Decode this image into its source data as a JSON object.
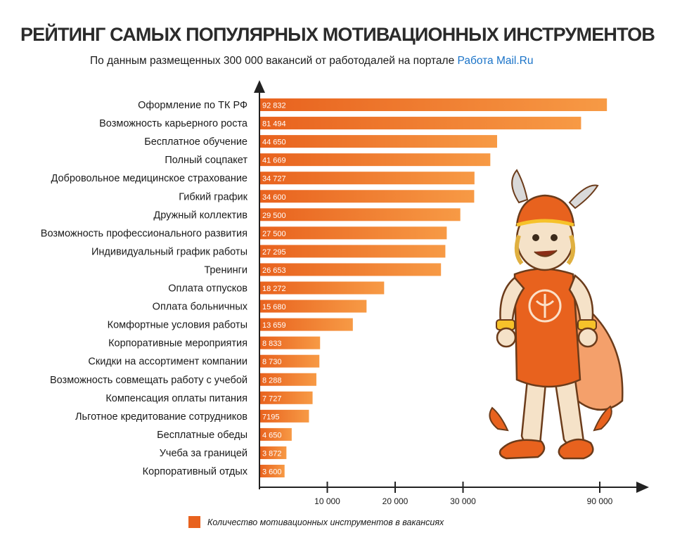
{
  "header": {
    "title": "РЕЙТИНГ САМЫХ ПОПУЛЯРНЫХ МОТИВАЦИОННЫХ ИНСТРУМЕНТОВ",
    "subtitle_prefix": "По данным размещенных 300 000 вакансий от работодалей на портале ",
    "subtitle_brand": "Работа Mail.Ru"
  },
  "colors": {
    "bar_start": "#e8621e",
    "bar_end": "#f79a45",
    "axis": "#222222",
    "brand_link": "#1a73c8"
  },
  "legend": {
    "label": "Количество мотивационных инструментов в вакансиях",
    "color": "#e8621e"
  },
  "mascot": {
    "icon": "hermes-mascot-icon"
  },
  "chart_data": {
    "type": "bar",
    "orientation": "horizontal",
    "axis_break": "between 30 000 and 90 000",
    "categories": [
      "Оформление по ТК РФ",
      "Возможность карьерного роста",
      "Бесплатное обучение",
      "Полный соцпакет",
      "Добровольное медицинское страхование",
      "Гибкий график",
      "Дружный коллектив",
      "Возможность профессионального развития",
      "Индивидуальный график работы",
      "Тренинги",
      "Оплата отпусков",
      "Оплата больничных",
      "Комфортные условия работы",
      "Корпоративные мероприятия",
      "Скидки на ассортимент компании",
      "Возможность совмещать работу с учебой",
      "Компенсация оплаты питания",
      "Льготное кредитование сотрудников",
      "Бесплатные обеды",
      "Учеба за границей",
      "Корпоративный отдых"
    ],
    "values": [
      92832,
      81494,
      44650,
      41669,
      34727,
      34600,
      29500,
      27500,
      27295,
      26653,
      18272,
      15680,
      13659,
      8833,
      8730,
      8288,
      7727,
      7195,
      4650,
      3872,
      3600
    ],
    "value_labels": [
      "92 832",
      "81 494",
      "44 650",
      "41 669",
      "34 727",
      "34 600",
      "29 500",
      "27 500",
      "27 295",
      "26 653",
      "18 272",
      "15 680",
      "13 659",
      "8 833",
      "8 730",
      "8 288",
      "7 727",
      "7195",
      "4 650",
      "3 872",
      "3 600"
    ],
    "x_ticks": [
      {
        "value": 10000,
        "label": "10 000"
      },
      {
        "value": 20000,
        "label": "20 000"
      },
      {
        "value": 30000,
        "label": "30 000"
      },
      {
        "value": 90000,
        "label": "90 000"
      }
    ],
    "grid": false,
    "legend_position": "bottom"
  }
}
